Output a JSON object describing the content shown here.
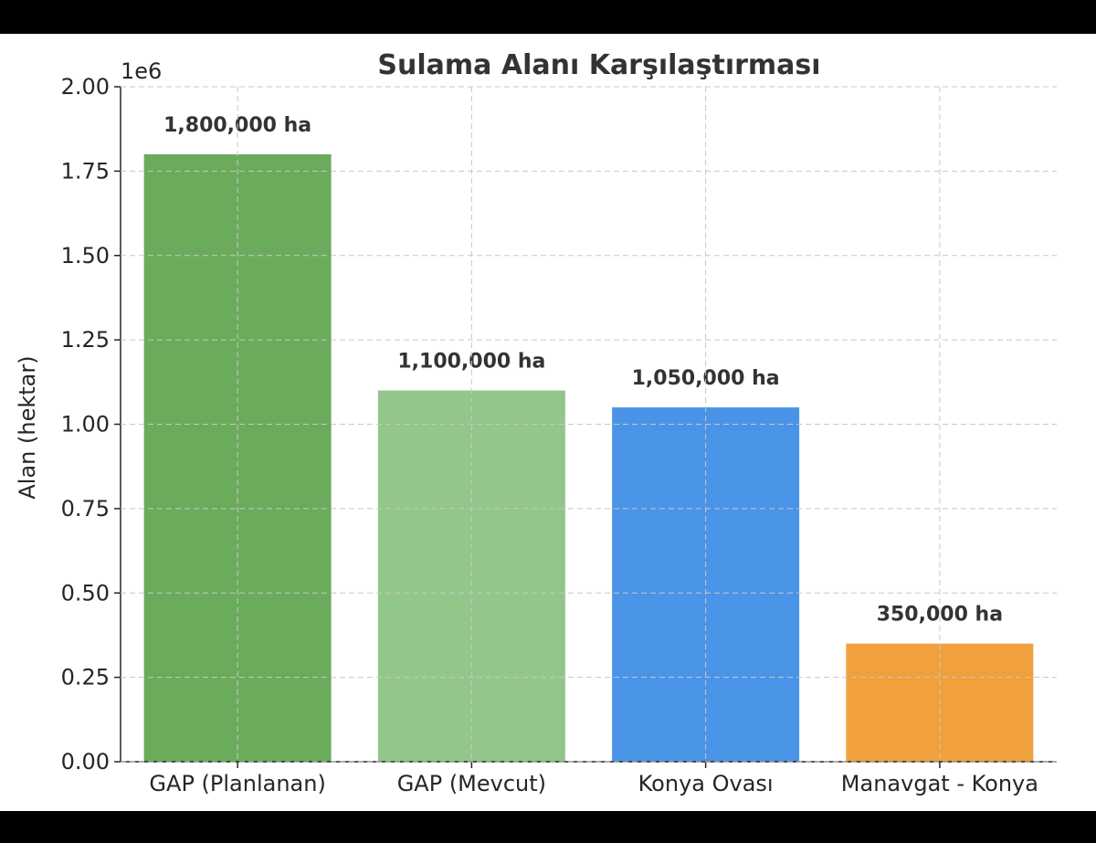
{
  "chart_data": {
    "type": "bar",
    "title": "Sulama Alanı Karşılaştırması",
    "ylabel": "Alan (hektar)",
    "xlabel": "",
    "y_offset_label": "1e6",
    "ylim": [
      0,
      2000000
    ],
    "grid": true,
    "categories": [
      "GAP (Planlanan)",
      "GAP (Mevcut)",
      "Konya Ovası",
      "Manavgat - Konya"
    ],
    "values": [
      1800000,
      1100000,
      1050000,
      350000
    ],
    "data_labels": [
      "1,800,000 ha",
      "1,100,000 ha",
      "1,050,000 ha",
      "350,000 ha"
    ],
    "colors": [
      "#6aac5b",
      "#93c68a",
      "#4a94e8",
      "#f0a03c"
    ],
    "y_ticks": [
      0,
      250000,
      500000,
      750000,
      1000000,
      1250000,
      1500000,
      1750000,
      2000000
    ],
    "y_tick_labels": [
      "0.00",
      "0.25",
      "0.50",
      "0.75",
      "1.00",
      "1.25",
      "1.50",
      "1.75",
      "2.00"
    ]
  }
}
